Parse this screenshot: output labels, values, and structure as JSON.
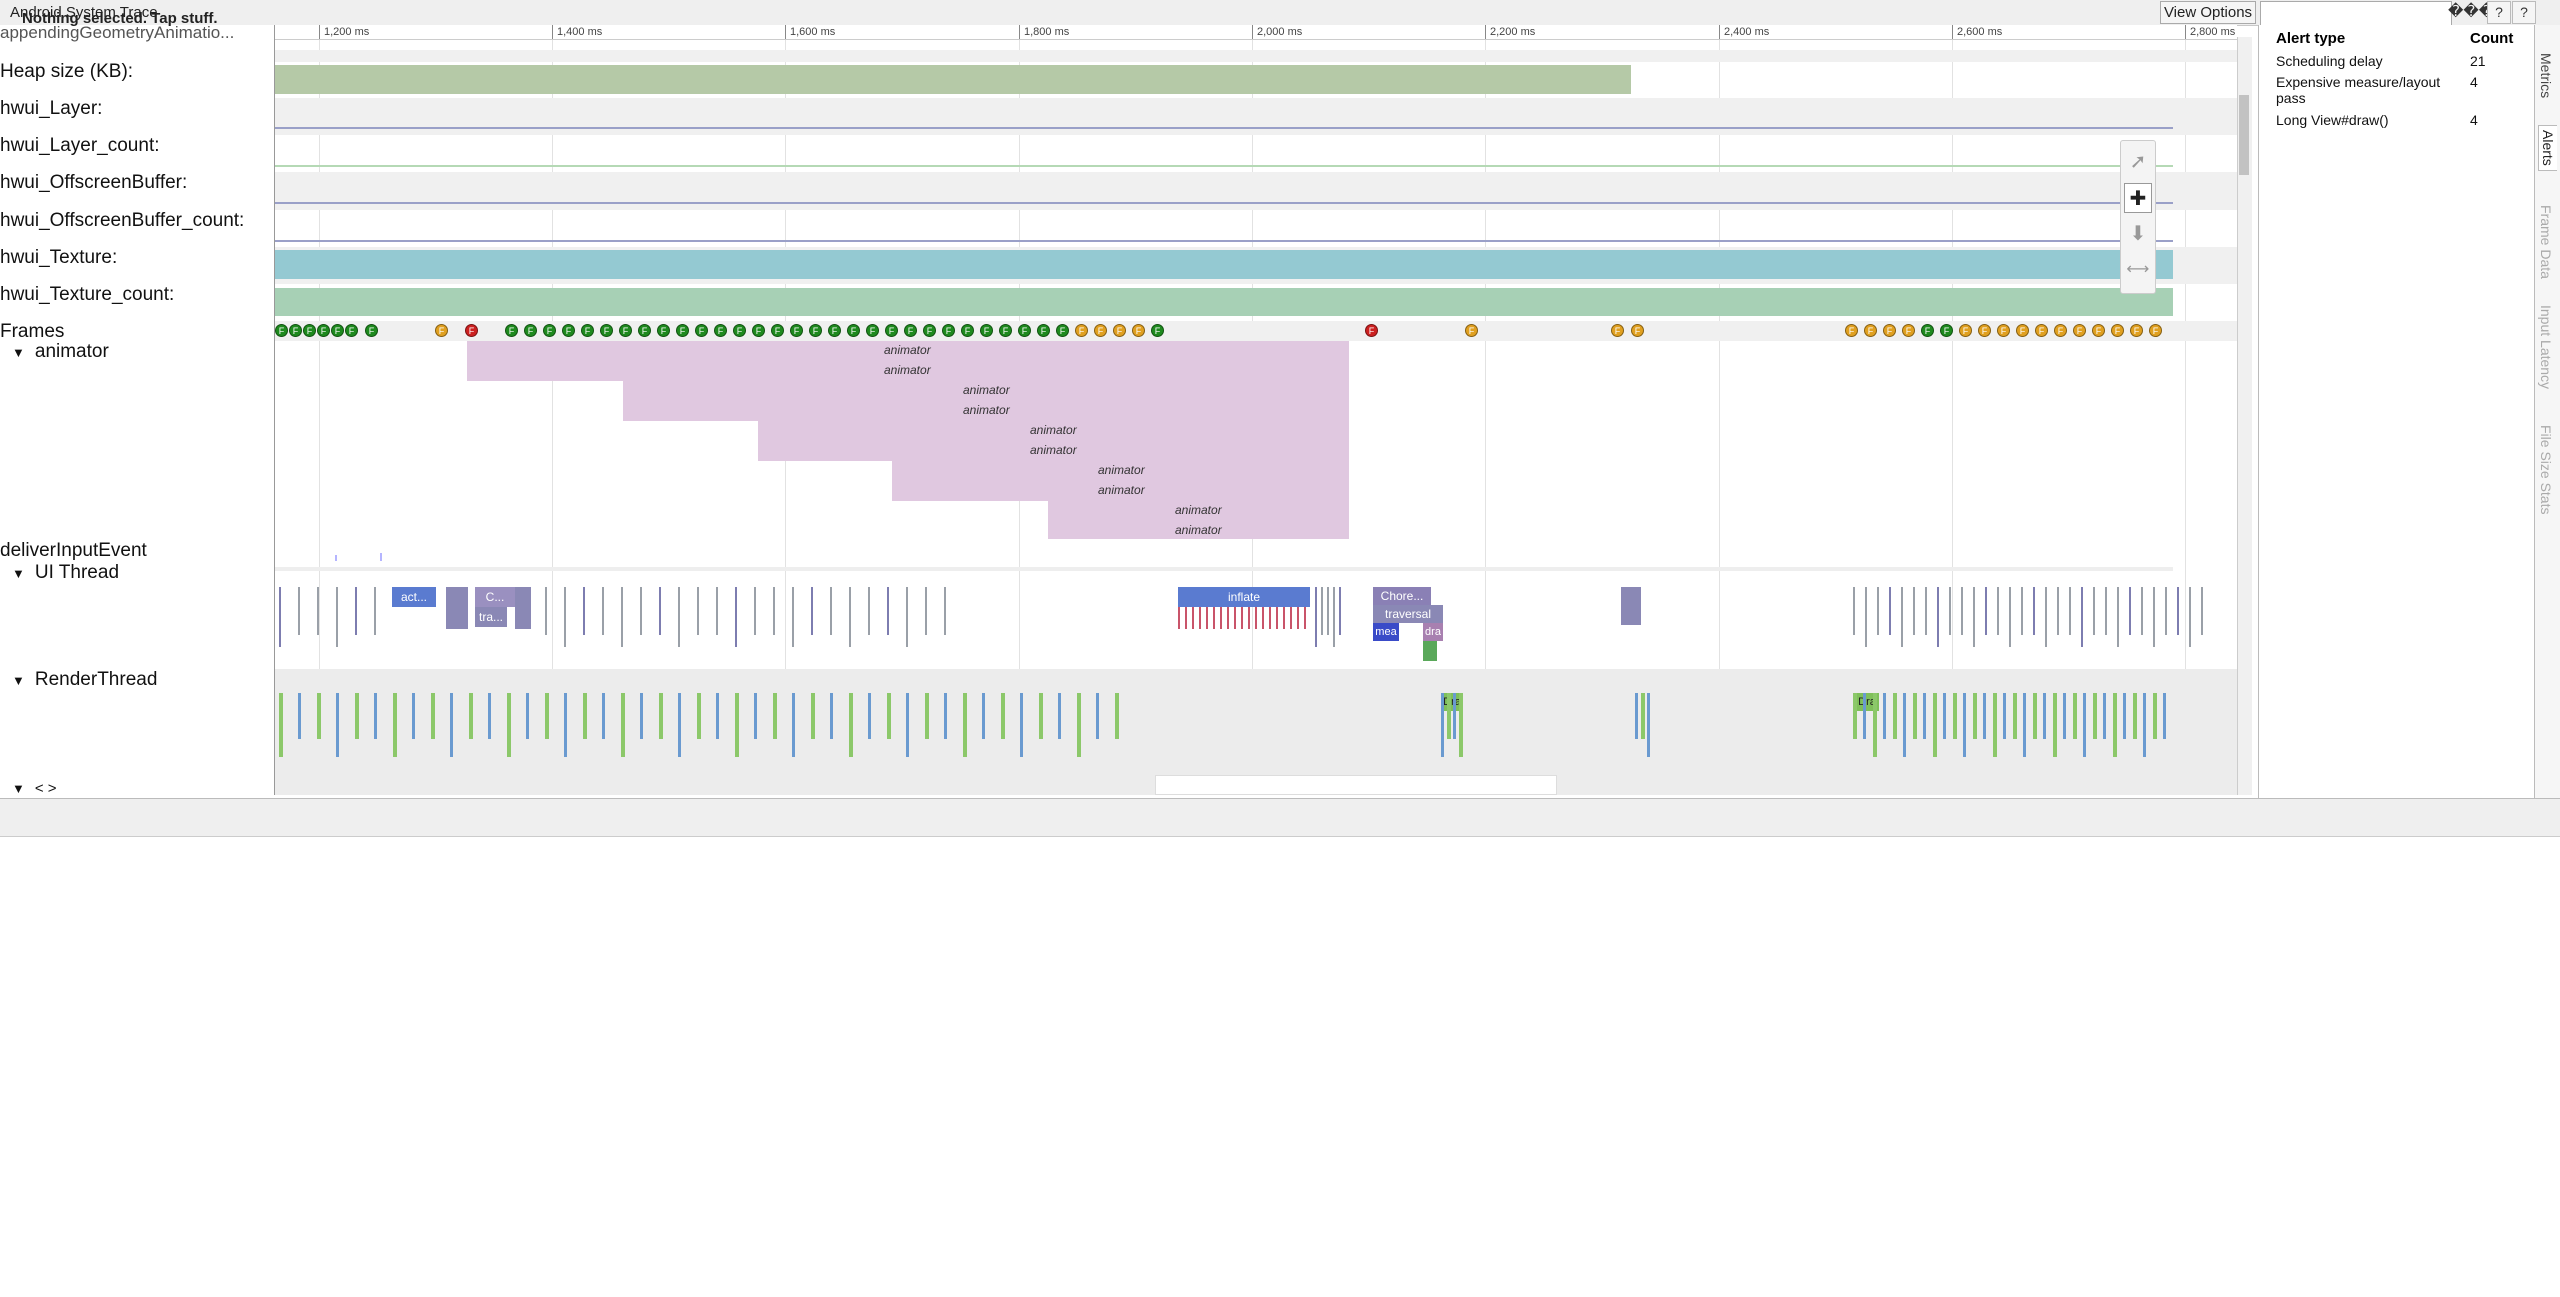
{
  "app": {
    "title": "Android System Trace"
  },
  "toolbar": {
    "view_options": "View Options",
    "search_value": "",
    "search_glyphs": "���",
    "help_label": "?",
    "help_label2": "?"
  },
  "ruler": {
    "ticks": [
      "1,200 ms",
      "1,400 ms",
      "1,600 ms",
      "1,800 ms",
      "2,000 ms",
      "2,200 ms",
      "2,400 ms",
      "2,600 ms",
      "2,800 ms"
    ]
  },
  "tracks": {
    "cut_label": "appendingGeometryAnimatio...",
    "heap": "Heap size (KB):",
    "hwui_layer": "hwui_Layer:",
    "hwui_layer_count": "hwui_Layer_count:",
    "hwui_offscreen": "hwui_OffscreenBuffer:",
    "hwui_offscreen_count": "hwui_OffscreenBuffer_count:",
    "hwui_texture": "hwui_Texture:",
    "hwui_texture_count": "hwui_Texture_count:",
    "frames": "Frames",
    "animator": "animator",
    "deliver": "deliverInputEvent",
    "ui_thread": "UI Thread",
    "render_thread": "RenderThread",
    "more": "< >"
  },
  "frame_letter": "F",
  "animator_labels": [
    "animator",
    "animator",
    "animator",
    "animator",
    "animator",
    "animator",
    "animator",
    "animator",
    "animator",
    "animator"
  ],
  "ui_slices": {
    "act": "act...",
    "c": "C...",
    "tra": "tra...",
    "inflate": "inflate",
    "chore": "Chore...",
    "traversal": "traversal",
    "mea": "mea",
    "dra": "dra"
  },
  "render_slices": {
    "dra1": "Dra",
    "dra2": "Dra"
  },
  "status": {
    "text": "Nothing selected. Tap stuff."
  },
  "alerts": {
    "header_type": "Alert type",
    "header_count": "Count",
    "rows": [
      {
        "type": "Scheduling delay",
        "count": "21"
      },
      {
        "type": "Expensive measure/layout pass",
        "count": "4"
      },
      {
        "type": "Long View#draw()",
        "count": "4"
      }
    ]
  },
  "side_tabs": [
    "Metrics",
    "Alerts",
    "Frame Data",
    "Input Latency",
    "File Size Stats"
  ],
  "colors": {
    "heap": "#b5c9a7",
    "texture": "#94c9d2",
    "texture_count": "#a7d0b5",
    "animator": "#e0c8e0",
    "frame_green": "#1e8a1e",
    "frame_orange": "#e0a020",
    "frame_red": "#cc2020"
  }
}
